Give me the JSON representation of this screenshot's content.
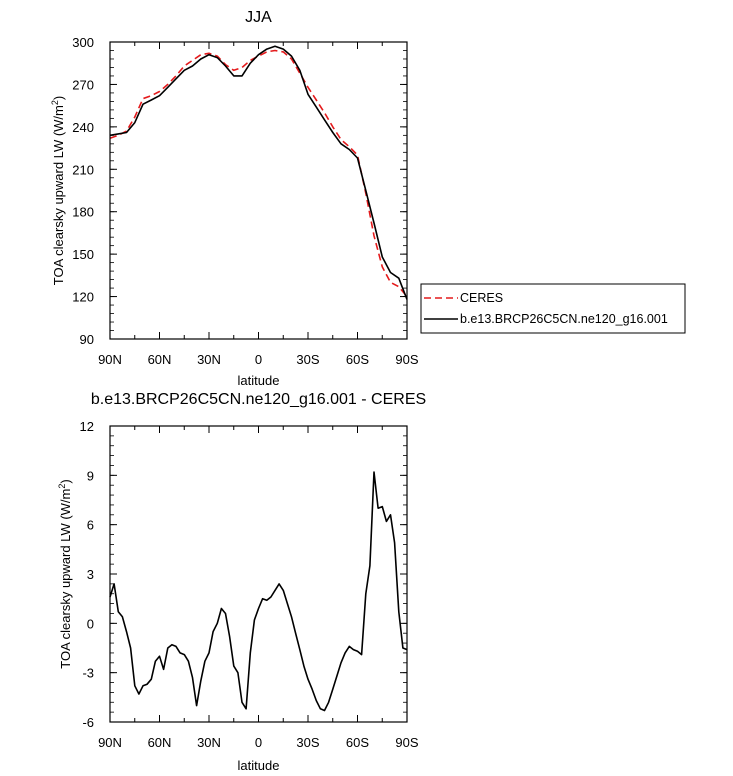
{
  "chart_data": [
    {
      "type": "line",
      "title": "JJA",
      "xlabel": "latitude",
      "ylabel": "TOA clearsky upward LW (W/m",
      "ylabel_sup": "2",
      "ylabel_end": ")",
      "xlim": [
        90,
        -90
      ],
      "ylim": [
        90,
        300
      ],
      "x_ticks": [
        90,
        60,
        30,
        0,
        -30,
        -60,
        -90
      ],
      "x_tick_labels": [
        "90N",
        "60N",
        "30N",
        "0",
        "30S",
        "60S",
        "90S"
      ],
      "y_ticks": [
        90,
        120,
        150,
        180,
        210,
        240,
        270,
        300
      ],
      "y_tick_labels": [
        "90",
        "120",
        "150",
        "180",
        "210",
        "240",
        "270",
        "300"
      ],
      "legend_position": "right, outside plot",
      "series": [
        {
          "name": "CERES",
          "color": "#e41a1c",
          "dash": "dashed",
          "x": [
            90,
            85,
            80,
            75,
            70,
            65,
            60,
            55,
            50,
            45,
            40,
            35,
            30,
            25,
            20,
            15,
            10,
            5,
            0,
            -5,
            -10,
            -15,
            -20,
            -25,
            -30,
            -35,
            -40,
            -45,
            -50,
            -55,
            -60,
            -65,
            -70,
            -75,
            -80,
            -85,
            -90
          ],
          "values": [
            232,
            234,
            237,
            247,
            260,
            262,
            265,
            270,
            276,
            283,
            287,
            291,
            292,
            290,
            284,
            280,
            282,
            287,
            290,
            293,
            294,
            293,
            288,
            278,
            268,
            259,
            250,
            240,
            231,
            226,
            220,
            193,
            163,
            141,
            130,
            127,
            120
          ]
        },
        {
          "name": "b.e13.BRCP26C5CN.ne120_g16.001",
          "color": "#000000",
          "dash": "solid",
          "x": [
            90,
            85,
            80,
            75,
            70,
            65,
            60,
            55,
            50,
            45,
            40,
            35,
            30,
            25,
            20,
            15,
            10,
            5,
            0,
            -5,
            -10,
            -15,
            -20,
            -25,
            -30,
            -35,
            -40,
            -45,
            -50,
            -55,
            -60,
            -65,
            -70,
            -75,
            -80,
            -85,
            -90
          ],
          "values": [
            234,
            235,
            236,
            243,
            256,
            259,
            262,
            268,
            274,
            280,
            283,
            288,
            291,
            289,
            283,
            276,
            276,
            285,
            291,
            295,
            297,
            295,
            290,
            280,
            263,
            254,
            245,
            236,
            228,
            224,
            218,
            195,
            172,
            148,
            137,
            133,
            118
          ]
        }
      ]
    },
    {
      "type": "line",
      "title": "b.e13.BRCP26C5CN.ne120_g16.001 - CERES",
      "xlabel": "latitude",
      "ylabel": "TOA clearsky upward LW (W/m",
      "ylabel_sup": "2",
      "ylabel_end": ")",
      "xlim": [
        90,
        -90
      ],
      "ylim": [
        -6,
        12
      ],
      "x_ticks": [
        90,
        60,
        30,
        0,
        -30,
        -60,
        -90
      ],
      "x_tick_labels": [
        "90N",
        "60N",
        "30N",
        "0",
        "30S",
        "60S",
        "90S"
      ],
      "y_ticks": [
        -6,
        -3,
        0,
        3,
        6,
        9,
        12
      ],
      "y_tick_labels": [
        "-6",
        "-3",
        "0",
        "3",
        "6",
        "9",
        "12"
      ],
      "series": [
        {
          "color": "#000000",
          "dash": "solid",
          "x": [
            90,
            87.5,
            85,
            82.5,
            80,
            77.5,
            75,
            72.5,
            70,
            67.5,
            65,
            62.5,
            60,
            57.5,
            55,
            52.5,
            50,
            47.5,
            45,
            42.5,
            40,
            37.5,
            35,
            32.5,
            30,
            27.5,
            25,
            22.5,
            20,
            17.5,
            15,
            12.5,
            10,
            7.5,
            5,
            2.5,
            0,
            -2.5,
            -5,
            -7.5,
            -10,
            -12.5,
            -15,
            -17.5,
            -20,
            -22.5,
            -25,
            -27.5,
            -30,
            -32.5,
            -35,
            -37.5,
            -40,
            -42.5,
            -45,
            -47.5,
            -50,
            -52.5,
            -55,
            -57.5,
            -60,
            -62.5,
            -65,
            -67.5,
            -70,
            -72.5,
            -75,
            -77.5,
            -80,
            -82.5,
            -85,
            -87.5,
            -90
          ],
          "values": [
            1.6,
            2.4,
            0.7,
            0.4,
            -0.5,
            -1.5,
            -3.8,
            -4.3,
            -3.8,
            -3.7,
            -3.4,
            -2.3,
            -2.0,
            -2.8,
            -1.5,
            -1.3,
            -1.4,
            -1.8,
            -1.9,
            -2.3,
            -3.3,
            -5.0,
            -3.5,
            -2.3,
            -1.8,
            -0.5,
            0.0,
            0.9,
            0.6,
            -0.8,
            -2.6,
            -3.0,
            -4.8,
            -5.2,
            -1.8,
            0.2,
            0.9,
            1.5,
            1.4,
            1.6,
            2.0,
            2.4,
            2.0,
            1.2,
            0.4,
            -0.6,
            -1.6,
            -2.6,
            -3.4,
            -4.0,
            -4.7,
            -5.2,
            -5.3,
            -4.8,
            -4.0,
            -3.2,
            -2.4,
            -1.8,
            -1.4,
            -1.6,
            -1.7,
            -1.9,
            1.8,
            3.5,
            9.2,
            7.0,
            7.1,
            6.2,
            6.6,
            4.9,
            0.7,
            -1.5,
            -1.6
          ]
        }
      ]
    }
  ]
}
